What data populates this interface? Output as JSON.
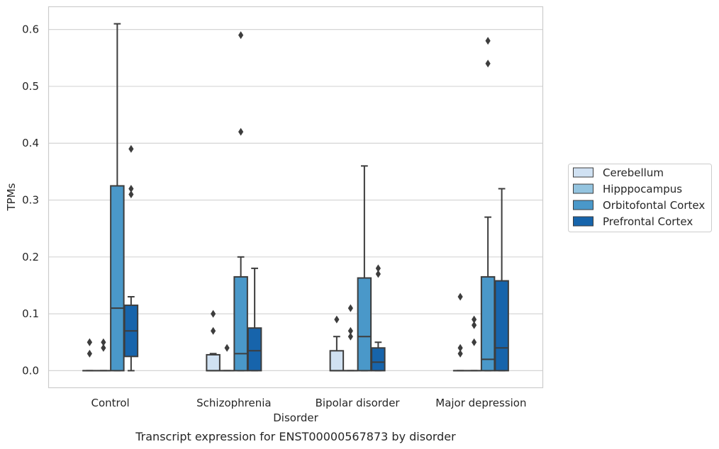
{
  "chart_data": {
    "type": "box",
    "caption": "Transcript expression for ENST00000567873 by disorder",
    "xlabel": "Disorder",
    "ylabel": "TPMs",
    "ylim": [
      -0.03,
      0.64
    ],
    "yticks": [
      "0.0",
      "0.1",
      "0.2",
      "0.3",
      "0.4",
      "0.5",
      "0.6"
    ],
    "grid": true,
    "legend_position": "right",
    "categories": [
      "Control",
      "Schizophrenia",
      "Bipolar disorder",
      "Major depression"
    ],
    "series": [
      {
        "name": "Cerebellum",
        "color": "#d0e1f2",
        "boxes": [
          {
            "q1": 0,
            "median": 0,
            "q3": 0,
            "whislo": 0,
            "whishi": 0,
            "fliers": [
              0.03,
              0.05,
              0.05
            ]
          },
          {
            "q1": 0,
            "median": 0,
            "q3": 0.028,
            "whislo": 0,
            "whishi": 0.03,
            "fliers": [
              0.07,
              0.1
            ]
          },
          {
            "q1": 0,
            "median": 0,
            "q3": 0.035,
            "whislo": 0,
            "whishi": 0.06,
            "fliers": [
              0.09
            ]
          },
          {
            "q1": 0,
            "median": 0,
            "q3": 0,
            "whislo": 0,
            "whishi": 0,
            "fliers": [
              0.03,
              0.04,
              0.13
            ]
          }
        ]
      },
      {
        "name": "Hipppocampus",
        "color": "#94c4df",
        "boxes": [
          {
            "q1": 0,
            "median": 0,
            "q3": 0,
            "whislo": 0,
            "whishi": 0,
            "fliers": [
              0.04,
              0.05
            ]
          },
          {
            "q1": 0,
            "median": 0,
            "q3": 0,
            "whislo": 0,
            "whishi": 0,
            "fliers": [
              0.04
            ]
          },
          {
            "q1": 0,
            "median": 0,
            "q3": 0,
            "whislo": 0,
            "whishi": 0,
            "fliers": [
              0.06,
              0.07,
              0.11
            ]
          },
          {
            "q1": 0,
            "median": 0,
            "q3": 0,
            "whislo": 0,
            "whishi": 0,
            "fliers": [
              0.05,
              0.08,
              0.09
            ]
          }
        ]
      },
      {
        "name": "Orbitofontal Cortex",
        "color": "#4a98c9",
        "boxes": [
          {
            "q1": 0,
            "median": 0.11,
            "q3": 0.325,
            "whislo": 0,
            "whishi": 0.61,
            "fliers": []
          },
          {
            "q1": 0,
            "median": 0.03,
            "q3": 0.165,
            "whislo": 0,
            "whishi": 0.2,
            "fliers": [
              0.42,
              0.59
            ]
          },
          {
            "q1": 0,
            "median": 0.06,
            "q3": 0.163,
            "whislo": 0,
            "whishi": 0.36,
            "fliers": []
          },
          {
            "q1": 0,
            "median": 0.02,
            "q3": 0.165,
            "whislo": 0,
            "whishi": 0.27,
            "fliers": [
              0.54,
              0.58
            ]
          }
        ]
      },
      {
        "name": "Prefrontal Cortex",
        "color": "#1764ab",
        "boxes": [
          {
            "q1": 0.025,
            "median": 0.07,
            "q3": 0.115,
            "whislo": 0,
            "whishi": 0.13,
            "fliers": [
              0.31,
              0.32,
              0.39
            ]
          },
          {
            "q1": 0,
            "median": 0.035,
            "q3": 0.075,
            "whislo": 0,
            "whishi": 0.18,
            "fliers": []
          },
          {
            "q1": 0,
            "median": 0.015,
            "q3": 0.04,
            "whislo": 0,
            "whishi": 0.05,
            "fliers": [
              0.17,
              0.18
            ]
          },
          {
            "q1": 0,
            "median": 0.04,
            "q3": 0.158,
            "whislo": 0,
            "whishi": 0.32,
            "fliers": []
          }
        ]
      }
    ]
  }
}
